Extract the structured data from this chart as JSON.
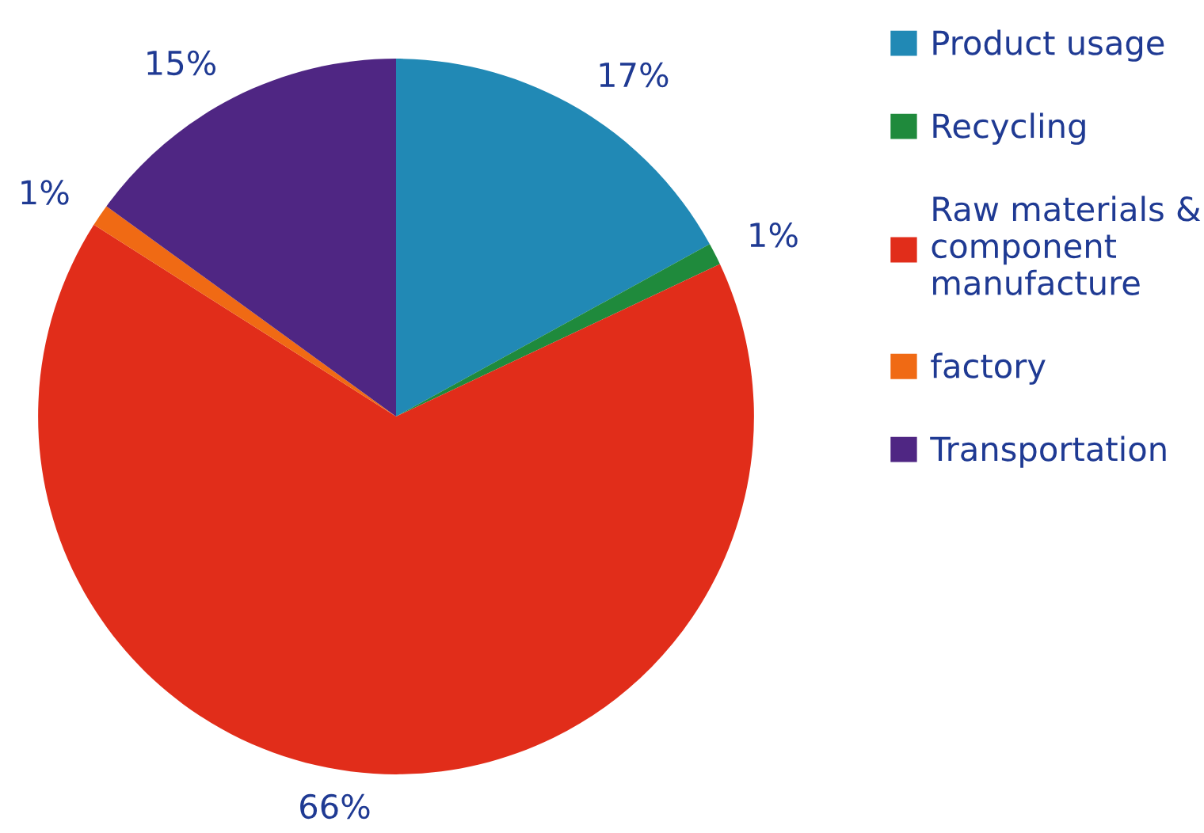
{
  "chart_data": {
    "type": "pie",
    "categories": [
      "Product usage",
      "Recycling",
      "Raw materials &\ncomponent\nmanufacture",
      "factory",
      "Transportation"
    ],
    "values": [
      17,
      1,
      66,
      1,
      15
    ],
    "colors": [
      "#2189b5",
      "#1f8a3c",
      "#e12d1a",
      "#f06a14",
      "#4f2683"
    ],
    "value_labels": [
      "17%",
      "1%",
      "66%",
      "1%",
      "15%"
    ],
    "legend": "right"
  }
}
